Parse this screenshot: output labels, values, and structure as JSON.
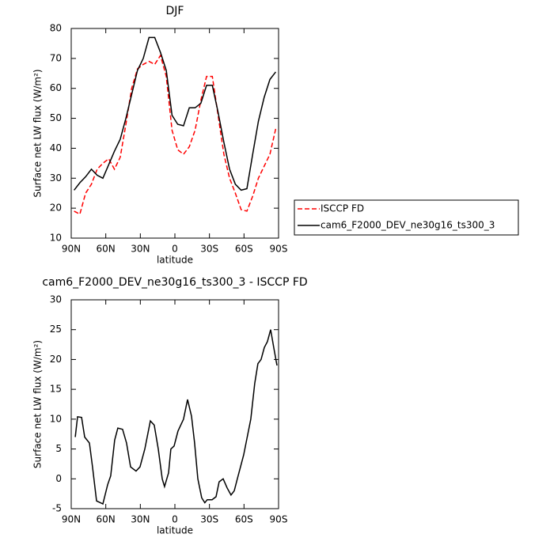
{
  "chart_data": [
    {
      "type": "line",
      "title": "DJF",
      "xlabel": "latitude",
      "ylabel": "Surface net LW flux (W/m²)",
      "xlim": [
        90,
        -90
      ],
      "xticks": [
        {
          "value": 90,
          "label": "90N"
        },
        {
          "value": 60,
          "label": "60N"
        },
        {
          "value": 30,
          "label": "30N"
        },
        0,
        {
          "value": -30,
          "label": "30S"
        },
        {
          "value": -60,
          "label": "60S"
        },
        {
          "value": -90,
          "label": "90S"
        }
      ],
      "ylim": [
        10,
        80
      ],
      "yticks": [
        10,
        20,
        30,
        40,
        50,
        60,
        70,
        80
      ],
      "legend": "outside-right",
      "x": [
        87.5,
        82.5,
        77.5,
        72.5,
        67.5,
        62.5,
        57.5,
        52.5,
        47.5,
        42.5,
        37.5,
        32.5,
        27.5,
        22.5,
        17.5,
        12.5,
        7.5,
        2.5,
        -2.5,
        -7.5,
        -12.5,
        -17.5,
        -22.5,
        -27.5,
        -32.5,
        -37.5,
        -42.5,
        -47.5,
        -52.5,
        -57.5,
        -62.5,
        -67.5,
        -72.5,
        -77.5,
        -82.5,
        -87.5
      ],
      "series": [
        {
          "name": "ISCCP FD",
          "color": "#ff0000",
          "line_style": "dashed",
          "values": [
            19,
            18,
            25,
            28,
            33,
            35,
            36.5,
            33,
            37,
            48,
            60,
            66.5,
            68,
            69,
            68,
            71,
            64,
            46,
            39.5,
            38,
            40.5,
            46,
            56,
            64,
            64,
            51,
            38,
            30,
            25,
            19.5,
            19,
            24,
            30,
            34,
            38,
            46.5
          ]
        },
        {
          "name": "cam6_F2000_DEV_ne30g16_ts300_3",
          "color": "#000000",
          "line_style": "solid",
          "values": [
            26,
            28.5,
            30.5,
            33,
            31,
            30,
            34.5,
            39,
            43,
            50,
            58,
            66,
            70,
            77,
            77,
            72,
            66,
            51,
            48,
            47.5,
            53.5,
            53.5,
            55,
            61,
            61,
            52,
            42,
            33,
            28,
            26,
            26.5,
            38,
            49,
            57,
            63,
            65.5
          ]
        }
      ]
    },
    {
      "type": "line",
      "title": "cam6_F2000_DEV_ne30g16_ts300_3 - ISCCP FD",
      "xlabel": "latitude",
      "ylabel": "Surface net LW flux (W/m²)",
      "xlim": [
        90,
        -90
      ],
      "xticks": [
        {
          "value": 90,
          "label": "90N"
        },
        {
          "value": 60,
          "label": "60N"
        },
        {
          "value": 30,
          "label": "30N"
        },
        0,
        {
          "value": -30,
          "label": "30S"
        },
        {
          "value": -60,
          "label": "60S"
        },
        {
          "value": -90,
          "label": "90S"
        }
      ],
      "ylim": [
        -5,
        30
      ],
      "yticks": [
        -5,
        0,
        5,
        10,
        15,
        20,
        25,
        30
      ],
      "x": [
        86.5,
        84.5,
        81,
        78.3,
        74.2,
        71.5,
        68,
        62.5,
        58.4,
        55.7,
        52.3,
        49.5,
        45.4,
        42,
        38.5,
        33.7,
        30.3,
        26.1,
        21.3,
        17.9,
        14.4,
        11,
        9,
        5.5,
        3.5,
        0.7,
        -2.7,
        -7.5,
        -11,
        -14.4,
        -17.1,
        -19.9,
        -23.3,
        -26,
        -28.1,
        -32.3,
        -35.7,
        -38.4,
        -41.9,
        -45.3,
        -48.7,
        -51.5,
        -54.2,
        -59.7,
        -65.9,
        -69.3,
        -72.1,
        -74.8,
        -77.6,
        -80.3,
        -83.1,
        -85.8,
        -88.6
      ],
      "series": [
        {
          "color": "#000000",
          "line_style": "solid",
          "values": [
            7,
            10.4,
            10.3,
            7,
            6,
            2,
            -3.7,
            -4.2,
            -1,
            0.5,
            6.5,
            8.5,
            8.3,
            6,
            2,
            1.3,
            2,
            5,
            9.7,
            9,
            5,
            0,
            -1.3,
            1,
            5,
            5.5,
            8,
            10,
            13.3,
            10.5,
            6,
            0,
            -3.2,
            -4,
            -3.5,
            -3.5,
            -3,
            -0.5,
            0,
            -1.5,
            -2.7,
            -2,
            0,
            4,
            10,
            16,
            19.3,
            20,
            22,
            23,
            25,
            22,
            19
          ]
        }
      ]
    }
  ]
}
